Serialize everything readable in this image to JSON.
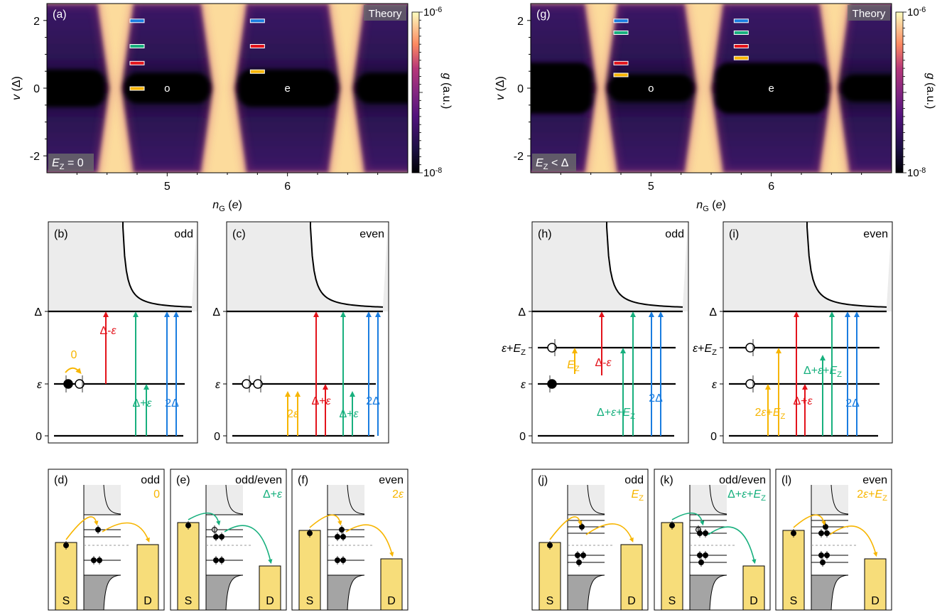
{
  "colors": {
    "bright": "#fcdb9c",
    "dark": "#000004",
    "mid": "#2d1459",
    "purple": "#4a1c6e",
    "gap_fill": "#ececec",
    "lead_fill": "#f7dd7a",
    "bulk_grey": "#a4a4a4",
    "blue": "#1a7de0",
    "green": "#18b07e",
    "red": "#e3131b",
    "yellow": "#f7b500"
  },
  "colorbar": {
    "top_tick": "10",
    "top_exp": "-6",
    "bottom_tick": "10",
    "bottom_exp": "-8",
    "label_main": "g",
    "label_unit": " (a.u.)"
  },
  "maps": [
    {
      "panel": "(a)",
      "theory": "Theory",
      "corner_sym": "E",
      "corner_sub": "Z",
      "corner_rel": " = 0",
      "regions": [
        "o",
        "e"
      ],
      "x_ticks": [
        "5",
        "6"
      ],
      "y_ticks": [
        "2",
        "0",
        "-2"
      ],
      "xlabel_main": "n",
      "xlabel_sub": "G",
      "xlabel_unit": " (e)",
      "ylabel_main": "v",
      "ylabel_unit": " (Δ)",
      "markers_odd": [
        2.0,
        1.25,
        0.75,
        0.0
      ],
      "markers_even": [
        2.0,
        1.25,
        0.5
      ]
    },
    {
      "panel": "(g)",
      "theory": "Theory",
      "corner_sym": "E",
      "corner_sub": "Z",
      "corner_rel": " < Δ",
      "regions": [
        "o",
        "e"
      ],
      "x_ticks": [
        "5",
        "6"
      ],
      "y_ticks": [
        "2",
        "0",
        "-2"
      ],
      "xlabel_main": "n",
      "xlabel_sub": "G",
      "xlabel_unit": " (e)",
      "ylabel_main": "v",
      "ylabel_unit": " (Δ)",
      "markers_odd": [
        2.0,
        1.65,
        0.75,
        0.4
      ],
      "markers_even": [
        2.0,
        1.65,
        1.25,
        0.9
      ]
    }
  ],
  "level_panels": [
    {
      "panel": "(b)",
      "parity": "odd",
      "y_ticks": [
        "Δ",
        "ε",
        "0"
      ],
      "arrow_labels": [
        "0",
        "Δ-ε",
        "Δ+ε",
        "2Δ"
      ]
    },
    {
      "panel": "(c)",
      "parity": "even",
      "y_ticks": [
        "Δ",
        "ε",
        "0"
      ],
      "arrow_labels": [
        "2ε",
        "Δ+ε",
        "Δ+ε",
        "2Δ"
      ]
    },
    {
      "panel": "(h)",
      "parity": "odd",
      "y_ticks": [
        "Δ",
        "ε+EZ",
        "ε",
        "0"
      ],
      "arrow_labels": [
        "EZ",
        "Δ-ε",
        "Δ+ε+EZ",
        "2Δ"
      ]
    },
    {
      "panel": "(i)",
      "parity": "even",
      "y_ticks": [
        "Δ",
        "ε+EZ",
        "ε",
        "0"
      ],
      "arrow_labels": [
        "2ε+EZ",
        "Δ+ε",
        "Δ+ε+EZ",
        "2Δ"
      ]
    }
  ],
  "process_panels": [
    {
      "panel": "(d)",
      "parity": "odd",
      "process": "0",
      "source": "S",
      "drain": "D"
    },
    {
      "panel": "(e)",
      "parity": "odd/even",
      "process": "Δ+ε",
      "source": "S",
      "drain": "D"
    },
    {
      "panel": "(f)",
      "parity": "even",
      "process": "2ε",
      "source": "S",
      "drain": "D"
    },
    {
      "panel": "(j)",
      "parity": "odd",
      "process": "EZ",
      "source": "S",
      "drain": "D"
    },
    {
      "panel": "(k)",
      "parity": "odd/even",
      "process": "Δ+ε+EZ",
      "source": "S",
      "drain": "D"
    },
    {
      "panel": "(l)",
      "parity": "even",
      "process": "2ε+EZ",
      "source": "S",
      "drain": "D"
    }
  ]
}
